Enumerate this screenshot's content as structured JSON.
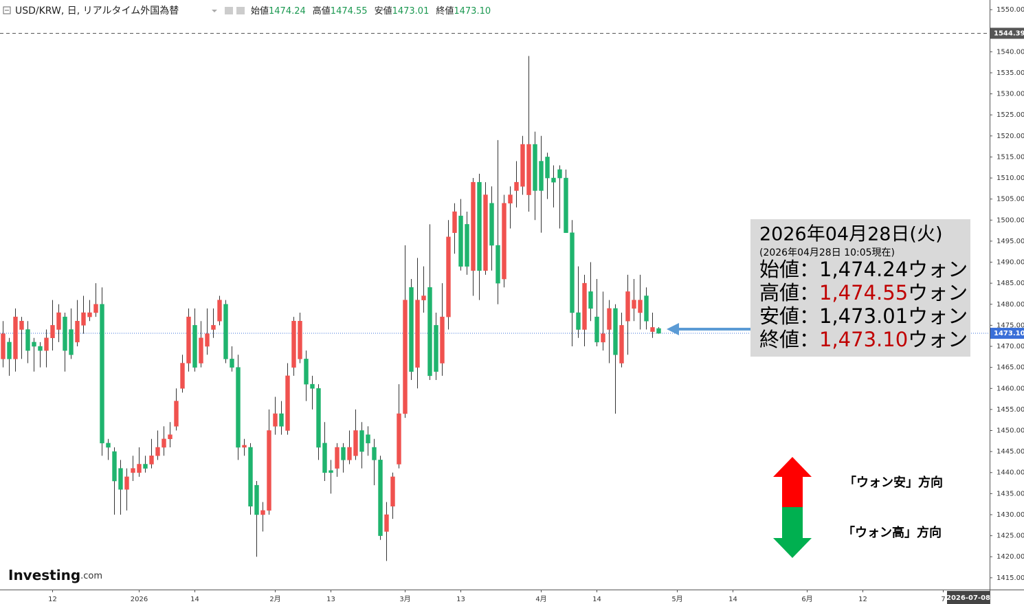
{
  "header": {
    "title": "USD/KRW, 日, リアルタイム外国為替",
    "ohlc": [
      {
        "label": "始値",
        "value": "1474.24"
      },
      {
        "label": "高値",
        "value": "1474.55"
      },
      {
        "label": "安値",
        "value": "1473.01"
      },
      {
        "label": "終値",
        "value": "1473.10"
      }
    ]
  },
  "chart_data": {
    "type": "candlestick",
    "up_color": "#f0524f",
    "down_color": "#1fb46e",
    "wick_color": "#333333",
    "xlim": [
      -0.5,
      159.5
    ],
    "ylim": [
      1412.2,
      1552.3
    ],
    "xticks": [
      {
        "value": 8,
        "label": "12"
      },
      {
        "value": 22,
        "label": "2026"
      },
      {
        "value": 31,
        "label": "14"
      },
      {
        "value": 44,
        "label": "2月"
      },
      {
        "value": 53,
        "label": "13"
      },
      {
        "value": 65,
        "label": "3月"
      },
      {
        "value": 74,
        "label": "13"
      },
      {
        "value": 87,
        "label": "4月"
      },
      {
        "value": 96,
        "label": "14"
      },
      {
        "value": 109,
        "label": "5月"
      },
      {
        "value": 118,
        "label": "14"
      },
      {
        "value": 130,
        "label": "6月"
      },
      {
        "value": 139,
        "label": "12"
      },
      {
        "value": 152,
        "label": "7"
      }
    ],
    "yticks": [
      {
        "value": 1415,
        "label": "1415.00"
      },
      {
        "value": 1420,
        "label": "1420.00"
      },
      {
        "value": 1425,
        "label": "1425.00"
      },
      {
        "value": 1430,
        "label": "1430.00"
      },
      {
        "value": 1435,
        "label": "1435.00"
      },
      {
        "value": 1440,
        "label": "1440.00"
      },
      {
        "value": 1445,
        "label": "1445.00"
      },
      {
        "value": 1450,
        "label": "1450.00"
      },
      {
        "value": 1455,
        "label": "1455.00"
      },
      {
        "value": 1460,
        "label": "1460.00"
      },
      {
        "value": 1465,
        "label": "1465.00"
      },
      {
        "value": 1470,
        "label": "1470.00"
      },
      {
        "value": 1475,
        "label": "1475.00"
      },
      {
        "value": 1480,
        "label": "1480.00"
      },
      {
        "value": 1485,
        "label": "1485.00"
      },
      {
        "value": 1490,
        "label": "1490.00"
      },
      {
        "value": 1495,
        "label": "1495.00"
      },
      {
        "value": 1500,
        "label": "1500.00"
      },
      {
        "value": 1505,
        "label": "1505.00"
      },
      {
        "value": 1510,
        "label": "1510.00"
      },
      {
        "value": 1515,
        "label": "1515.00"
      },
      {
        "value": 1520,
        "label": "1520.00"
      },
      {
        "value": 1525,
        "label": "1525.00"
      },
      {
        "value": 1530,
        "label": "1530.00"
      },
      {
        "value": 1535,
        "label": "1535.00"
      },
      {
        "value": 1540,
        "label": "1540.00"
      },
      {
        "value": 1545,
        "label": "1545.00"
      },
      {
        "value": 1550,
        "label": "1550.00"
      }
    ],
    "open": [
      1467,
      1471,
      1467,
      1474,
      1474,
      1471,
      1470,
      1469,
      1472,
      1474,
      1477,
      1474,
      1471,
      1475,
      1477,
      1478,
      1480,
      1447,
      1445,
      1441,
      1436,
      1440,
      1440,
      1442,
      1442,
      1444,
      1446,
      1448,
      1451,
      1460,
      1466,
      1475,
      1466,
      1470,
      1474,
      1476,
      1480,
      1467,
      1465,
      1446,
      1446,
      1437,
      1430,
      1431,
      1451,
      1454,
      1450,
      1465,
      1467,
      1467,
      1461,
      1460,
      1447,
      1440.5,
      1441,
      1446,
      1443,
      1444,
      1450,
      1449,
      1446,
      1443,
      1426,
      1432,
      1442,
      1454,
      1484,
      1465,
      1481,
      1484,
      1475,
      1466,
      1477,
      1497,
      1501,
      1499,
      1488,
      1509,
      1488,
      1504,
      1494,
      1486,
      1504,
      1507,
      1508,
      1506,
      1518,
      1514,
      1515,
      1510,
      1512,
      1510,
      1497,
      1478,
      1474,
      1483,
      1477,
      1471,
      1474,
      1479,
      1466,
      1476,
      1479,
      1478,
      1482,
      1473.5,
      1474.24
    ],
    "high": [
      1476,
      1472,
      1479,
      1477,
      1476,
      1472,
      1471,
      1474,
      1481,
      1480,
      1478,
      1479,
      1481,
      1482,
      1481,
      1485,
      1484,
      1448,
      1446,
      1443,
      1441,
      1444,
      1446,
      1444,
      1448,
      1450,
      1451,
      1452,
      1460,
      1468,
      1479,
      1479,
      1476,
      1479,
      1479,
      1482,
      1481,
      1470,
      1468,
      1448,
      1447,
      1438,
      1433,
      1455,
      1458,
      1457,
      1466,
      1477,
      1478,
      1469,
      1463,
      1461,
      1452,
      1443,
      1447,
      1447,
      1450,
      1455,
      1452,
      1451,
      1448,
      1444,
      1433,
      1440,
      1461,
      1494,
      1486,
      1491,
      1489,
      1499,
      1478,
      1485,
      1500,
      1504,
      1505,
      1502,
      1510,
      1511,
      1509,
      1508,
      1519,
      1506,
      1508,
      1514,
      1520,
      1539,
      1521,
      1520,
      1516,
      1513,
      1513,
      1512,
      1500,
      1489,
      1487,
      1490,
      1486,
      1483,
      1481,
      1480,
      1478,
      1487,
      1486,
      1487,
      1484,
      1478,
      1474.55
    ],
    "low": [
      1465,
      1463,
      1464,
      1467,
      1466,
      1464,
      1465,
      1465,
      1469,
      1471,
      1464,
      1467,
      1470,
      1473,
      1476,
      1477,
      1444,
      1443,
      1430,
      1430,
      1431,
      1438,
      1439,
      1440,
      1441,
      1443,
      1444,
      1446,
      1450,
      1459,
      1464,
      1464,
      1465,
      1468,
      1472,
      1475,
      1466,
      1464,
      1443,
      1444,
      1430,
      1420,
      1426,
      1430,
      1449,
      1449,
      1449,
      1463,
      1466,
      1457,
      1455,
      1443,
      1438,
      1435,
      1439,
      1440,
      1442,
      1443,
      1441,
      1444,
      1437,
      1424,
      1419,
      1429,
      1441,
      1453,
      1462,
      1460,
      1478,
      1462,
      1462,
      1463,
      1474,
      1492,
      1488,
      1487,
      1482,
      1481,
      1487,
      1488,
      1480,
      1484,
      1498,
      1503,
      1506,
      1502,
      1500,
      1497,
      1505,
      1503,
      1498,
      1497,
      1470,
      1472,
      1470,
      1476,
      1470,
      1469,
      1466,
      1454,
      1465,
      1468,
      1476,
      1474,
      1474,
      1472,
      1473.01
    ],
    "close": [
      1473,
      1467,
      1477,
      1476,
      1469,
      1470,
      1469,
      1472,
      1475,
      1478,
      1469,
      1468,
      1476,
      1478,
      1478,
      1480,
      1447,
      1446,
      1438,
      1436,
      1439,
      1441,
      1442,
      1441,
      1444,
      1446,
      1448,
      1449,
      1457,
      1466,
      1477,
      1465,
      1472,
      1473,
      1475,
      1481,
      1467,
      1465,
      1446,
      1446.5,
      1432,
      1430,
      1431,
      1450,
      1454,
      1451,
      1463,
      1476,
      1476,
      1461,
      1460,
      1446,
      1440,
      1440,
      1446,
      1443,
      1446,
      1450,
      1445,
      1447,
      1443,
      1425,
      1430,
      1439,
      1454,
      1481,
      1464,
      1481,
      1482,
      1463,
      1464,
      1477,
      1496,
      1502,
      1489,
      1489,
      1509,
      1488,
      1506,
      1494,
      1485,
      1504,
      1506,
      1509,
      1518,
      1518,
      1507,
      1507,
      1510,
      1509,
      1510,
      1497,
      1478,
      1474,
      1485,
      1479,
      1471,
      1473,
      1479,
      1468,
      1475,
      1483,
      1481,
      1481,
      1476,
      1474.5,
      1473.1
    ],
    "hlines": [
      {
        "value": 1544.39,
        "label": "1544.39",
        "style": "dashed",
        "color": "#555555"
      },
      {
        "value": 1473.1,
        "label": "1473.10",
        "style": "dotted",
        "color": "#3a6fd8"
      }
    ],
    "cursor_date": "2026-07-08"
  },
  "annotation": {
    "date": "2026年04月28日(火)",
    "asof": "(2026年04月28日 10:05現在)",
    "rows": [
      {
        "label": "始値：",
        "value": "1,474.24",
        "unit": "ウォン",
        "color": "#000000"
      },
      {
        "label": "高値：",
        "value": "1,474.55",
        "unit": "ウォン",
        "color": "#c00000"
      },
      {
        "label": "安値：",
        "value": "1,473.01",
        "unit": "ウォン",
        "color": "#000000"
      },
      {
        "label": "終値：",
        "value": "1,473.10",
        "unit": "ウォン",
        "color": "#c00000"
      }
    ]
  },
  "directions": [
    {
      "label": "「ウォン安」方向",
      "color": "#ff0000"
    },
    {
      "label": "「ウォン高」方向",
      "color": "#00b050"
    }
  ],
  "logo": {
    "name": "Investing",
    "suffix": ".com"
  }
}
